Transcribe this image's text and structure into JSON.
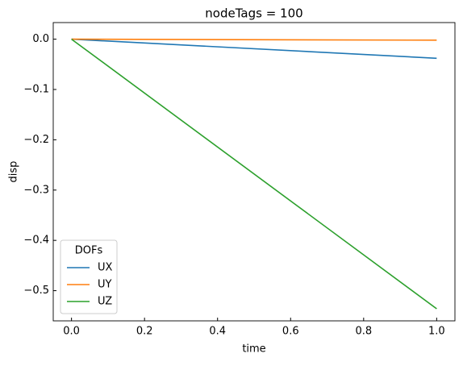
{
  "chart_data": {
    "type": "line",
    "title": "nodeTags = 100",
    "x_label": "time",
    "y_label": "disp",
    "x": [
      0,
      1
    ],
    "series": [
      {
        "name": "UX",
        "color": "#1f77b4",
        "values": [
          0,
          -0.038
        ]
      },
      {
        "name": "UY",
        "color": "#ff7f0e",
        "values": [
          0,
          -0.002
        ]
      },
      {
        "name": "UZ",
        "color": "#2ca02c",
        "values": [
          0,
          -0.536
        ]
      }
    ],
    "legend_title": "DOFs",
    "legend": "lower left",
    "xlim": [
      -0.05,
      1.05
    ],
    "xticks": [
      {
        "value": 0,
        "label": "0.0"
      },
      {
        "value": 0.2,
        "label": "0.2"
      },
      {
        "value": 0.4,
        "label": "0.4"
      },
      {
        "value": 0.6,
        "label": "0.6"
      },
      {
        "value": 0.8,
        "label": "0.8"
      },
      {
        "value": 1,
        "label": "1.0"
      }
    ],
    "ylim": [
      -0.56,
      0.033
    ],
    "yticks": [
      {
        "value": -0.5,
        "label": "−0.5"
      },
      {
        "value": -0.4,
        "label": "−0.4"
      },
      {
        "value": -0.3,
        "label": "−0.3"
      },
      {
        "value": -0.2,
        "label": "−0.2"
      },
      {
        "value": -0.1,
        "label": "−0.1"
      },
      {
        "value": 0,
        "label": "0.0"
      }
    ],
    "tick_direction": "in"
  }
}
